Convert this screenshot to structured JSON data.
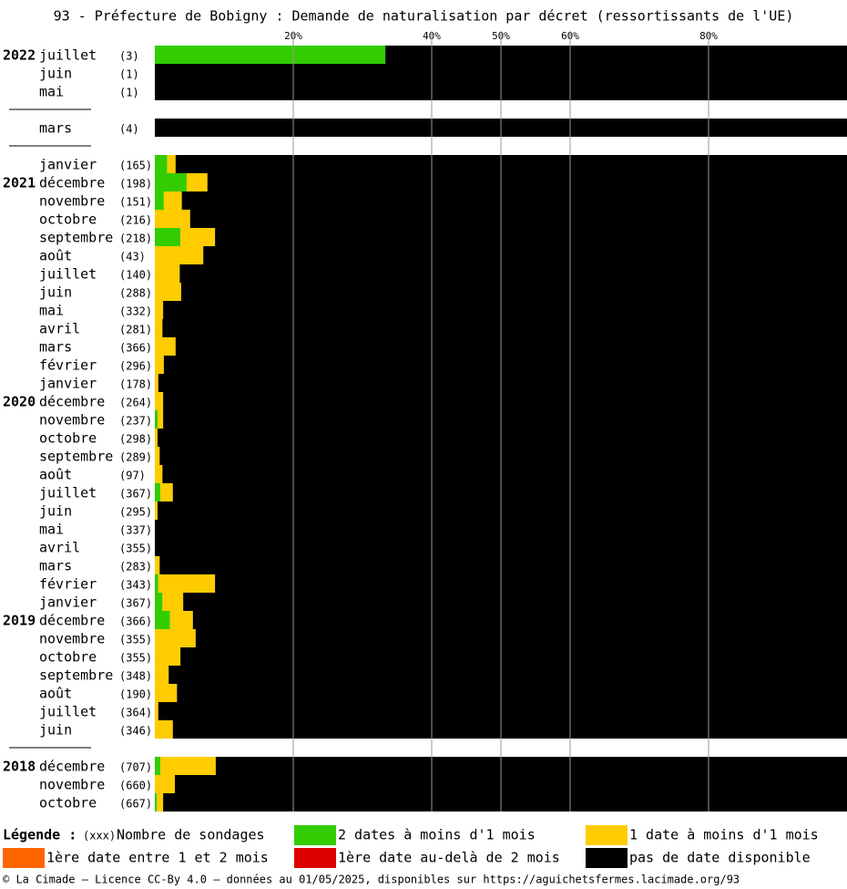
{
  "chart_data": {
    "type": "stacked-bar-horizontal",
    "title": "93 - Préfecture de Bobigny : Demande de naturalisation par décret (ressortissants de l'UE)",
    "categories": [
      "juillet",
      "juin",
      "mai",
      null,
      "mars",
      null,
      "janvier",
      "décembre",
      "novembre",
      "octobre",
      "septembre",
      "août",
      "juillet",
      "juin",
      "mai",
      "avril",
      "mars",
      "février",
      "janvier",
      "décembre",
      "novembre",
      "octobre",
      "septembre",
      "août",
      "juillet",
      "juin",
      "mai",
      "avril",
      "mars",
      "février",
      "janvier",
      "décembre",
      "novembre",
      "octobre",
      "septembre",
      "août",
      "juillet",
      "juin",
      null,
      "décembre",
      "novembre",
      "octobre"
    ],
    "years": [
      "2022",
      null,
      null,
      null,
      null,
      null,
      null,
      "2021",
      null,
      null,
      null,
      null,
      null,
      null,
      null,
      null,
      null,
      null,
      null,
      "2020",
      null,
      null,
      null,
      null,
      null,
      null,
      null,
      null,
      null,
      null,
      null,
      "2019",
      null,
      null,
      null,
      null,
      null,
      null,
      null,
      "2018",
      null,
      null
    ],
    "counts": [
      "(3)",
      "(1)",
      "(1)",
      null,
      "(4)",
      null,
      "(165)",
      "(198)",
      "(151)",
      "(216)",
      "(218)",
      "(43)",
      "(140)",
      "(288)",
      "(332)",
      "(281)",
      "(366)",
      "(296)",
      "(178)",
      "(264)",
      "(237)",
      "(298)",
      "(289)",
      "(97)",
      "(367)",
      "(295)",
      "(337)",
      "(355)",
      "(283)",
      "(343)",
      "(367)",
      "(366)",
      "(355)",
      "(355)",
      "(348)",
      "(190)",
      "(364)",
      "(346)",
      null,
      "(707)",
      "(660)",
      "(667)"
    ],
    "series": [
      {
        "name": "2 dates à moins d'1 mois",
        "color": "#33cc00",
        "values": [
          33.3,
          0,
          0,
          null,
          0,
          null,
          1.8,
          4.6,
          1.3,
          0,
          3.7,
          0,
          0,
          0,
          0,
          0,
          0,
          0,
          0,
          0,
          0.4,
          0,
          0,
          0,
          0.8,
          0,
          0,
          0,
          0,
          0.5,
          1.1,
          2.2,
          0,
          0,
          0,
          0,
          0,
          0,
          null,
          0.8,
          0,
          0.3
        ]
      },
      {
        "name": "1 date à moins d'1 mois",
        "color": "#ffcc00",
        "values": [
          0,
          0,
          0,
          null,
          0,
          null,
          1.2,
          3.0,
          2.6,
          5.1,
          5.0,
          7.0,
          3.6,
          3.8,
          1.2,
          1.1,
          3.0,
          1.3,
          0.5,
          1.2,
          0.8,
          0.4,
          0.7,
          1.1,
          1.8,
          0.4,
          0,
          0,
          0.7,
          8.2,
          3.0,
          3.3,
          5.9,
          3.7,
          2.0,
          3.2,
          0.5,
          2.6,
          null,
          8.0,
          2.9,
          0.9
        ]
      },
      {
        "name": "1ère date entre 1 et 2 mois",
        "color": "#ff6600",
        "values": [
          0,
          0,
          0,
          null,
          0,
          null,
          0,
          0,
          0,
          0,
          0,
          0,
          0,
          0,
          0,
          0,
          0,
          0,
          0,
          0,
          0,
          0,
          0,
          0,
          0,
          0,
          0,
          0,
          0,
          0,
          0,
          0,
          0,
          0,
          0,
          0,
          0,
          0,
          null,
          0,
          0,
          0
        ]
      },
      {
        "name": "1ère date au-delà de 2 mois",
        "color": "#dd0000",
        "values": [
          0,
          0,
          0,
          null,
          0,
          null,
          0,
          0,
          0,
          0,
          0,
          0,
          0,
          0,
          0,
          0,
          0,
          0,
          0,
          0,
          0,
          0,
          0,
          0,
          0,
          0,
          0,
          0,
          0,
          0,
          0,
          0,
          0,
          0,
          0,
          0,
          0,
          0,
          null,
          0,
          0,
          0
        ]
      },
      {
        "name": "pas de date disponible",
        "color": "#000000",
        "values": [
          66.7,
          100,
          100,
          null,
          100,
          null,
          97,
          92.4,
          96.1,
          94.9,
          91.3,
          93,
          96.4,
          96.2,
          98.8,
          98.9,
          97,
          98.7,
          99.5,
          98.8,
          98.8,
          99.6,
          99.3,
          98.9,
          97.4,
          99.6,
          100,
          100,
          99.3,
          91.3,
          95.9,
          94.5,
          94.1,
          96.3,
          98,
          96.8,
          99.5,
          97.4,
          null,
          91.2,
          97.1,
          98.8
        ]
      }
    ],
    "xlim": [
      0,
      100
    ],
    "xticks": [
      {
        "value": 20,
        "label": "20%"
      },
      {
        "value": 40,
        "label": "40%"
      },
      {
        "value": 50,
        "label": "50%"
      },
      {
        "value": 60,
        "label": "60%"
      },
      {
        "value": 80,
        "label": "80%"
      }
    ],
    "grid": true,
    "legend_title": "Légende :",
    "count_key": "(xxx)",
    "count_key_label": "Nombre de sondages",
    "footer": "© La Cimade — Licence CC-By 4.0 — données au 01/05/2025, disponibles sur https://aguichetsfermes.lacimade.org/93"
  }
}
